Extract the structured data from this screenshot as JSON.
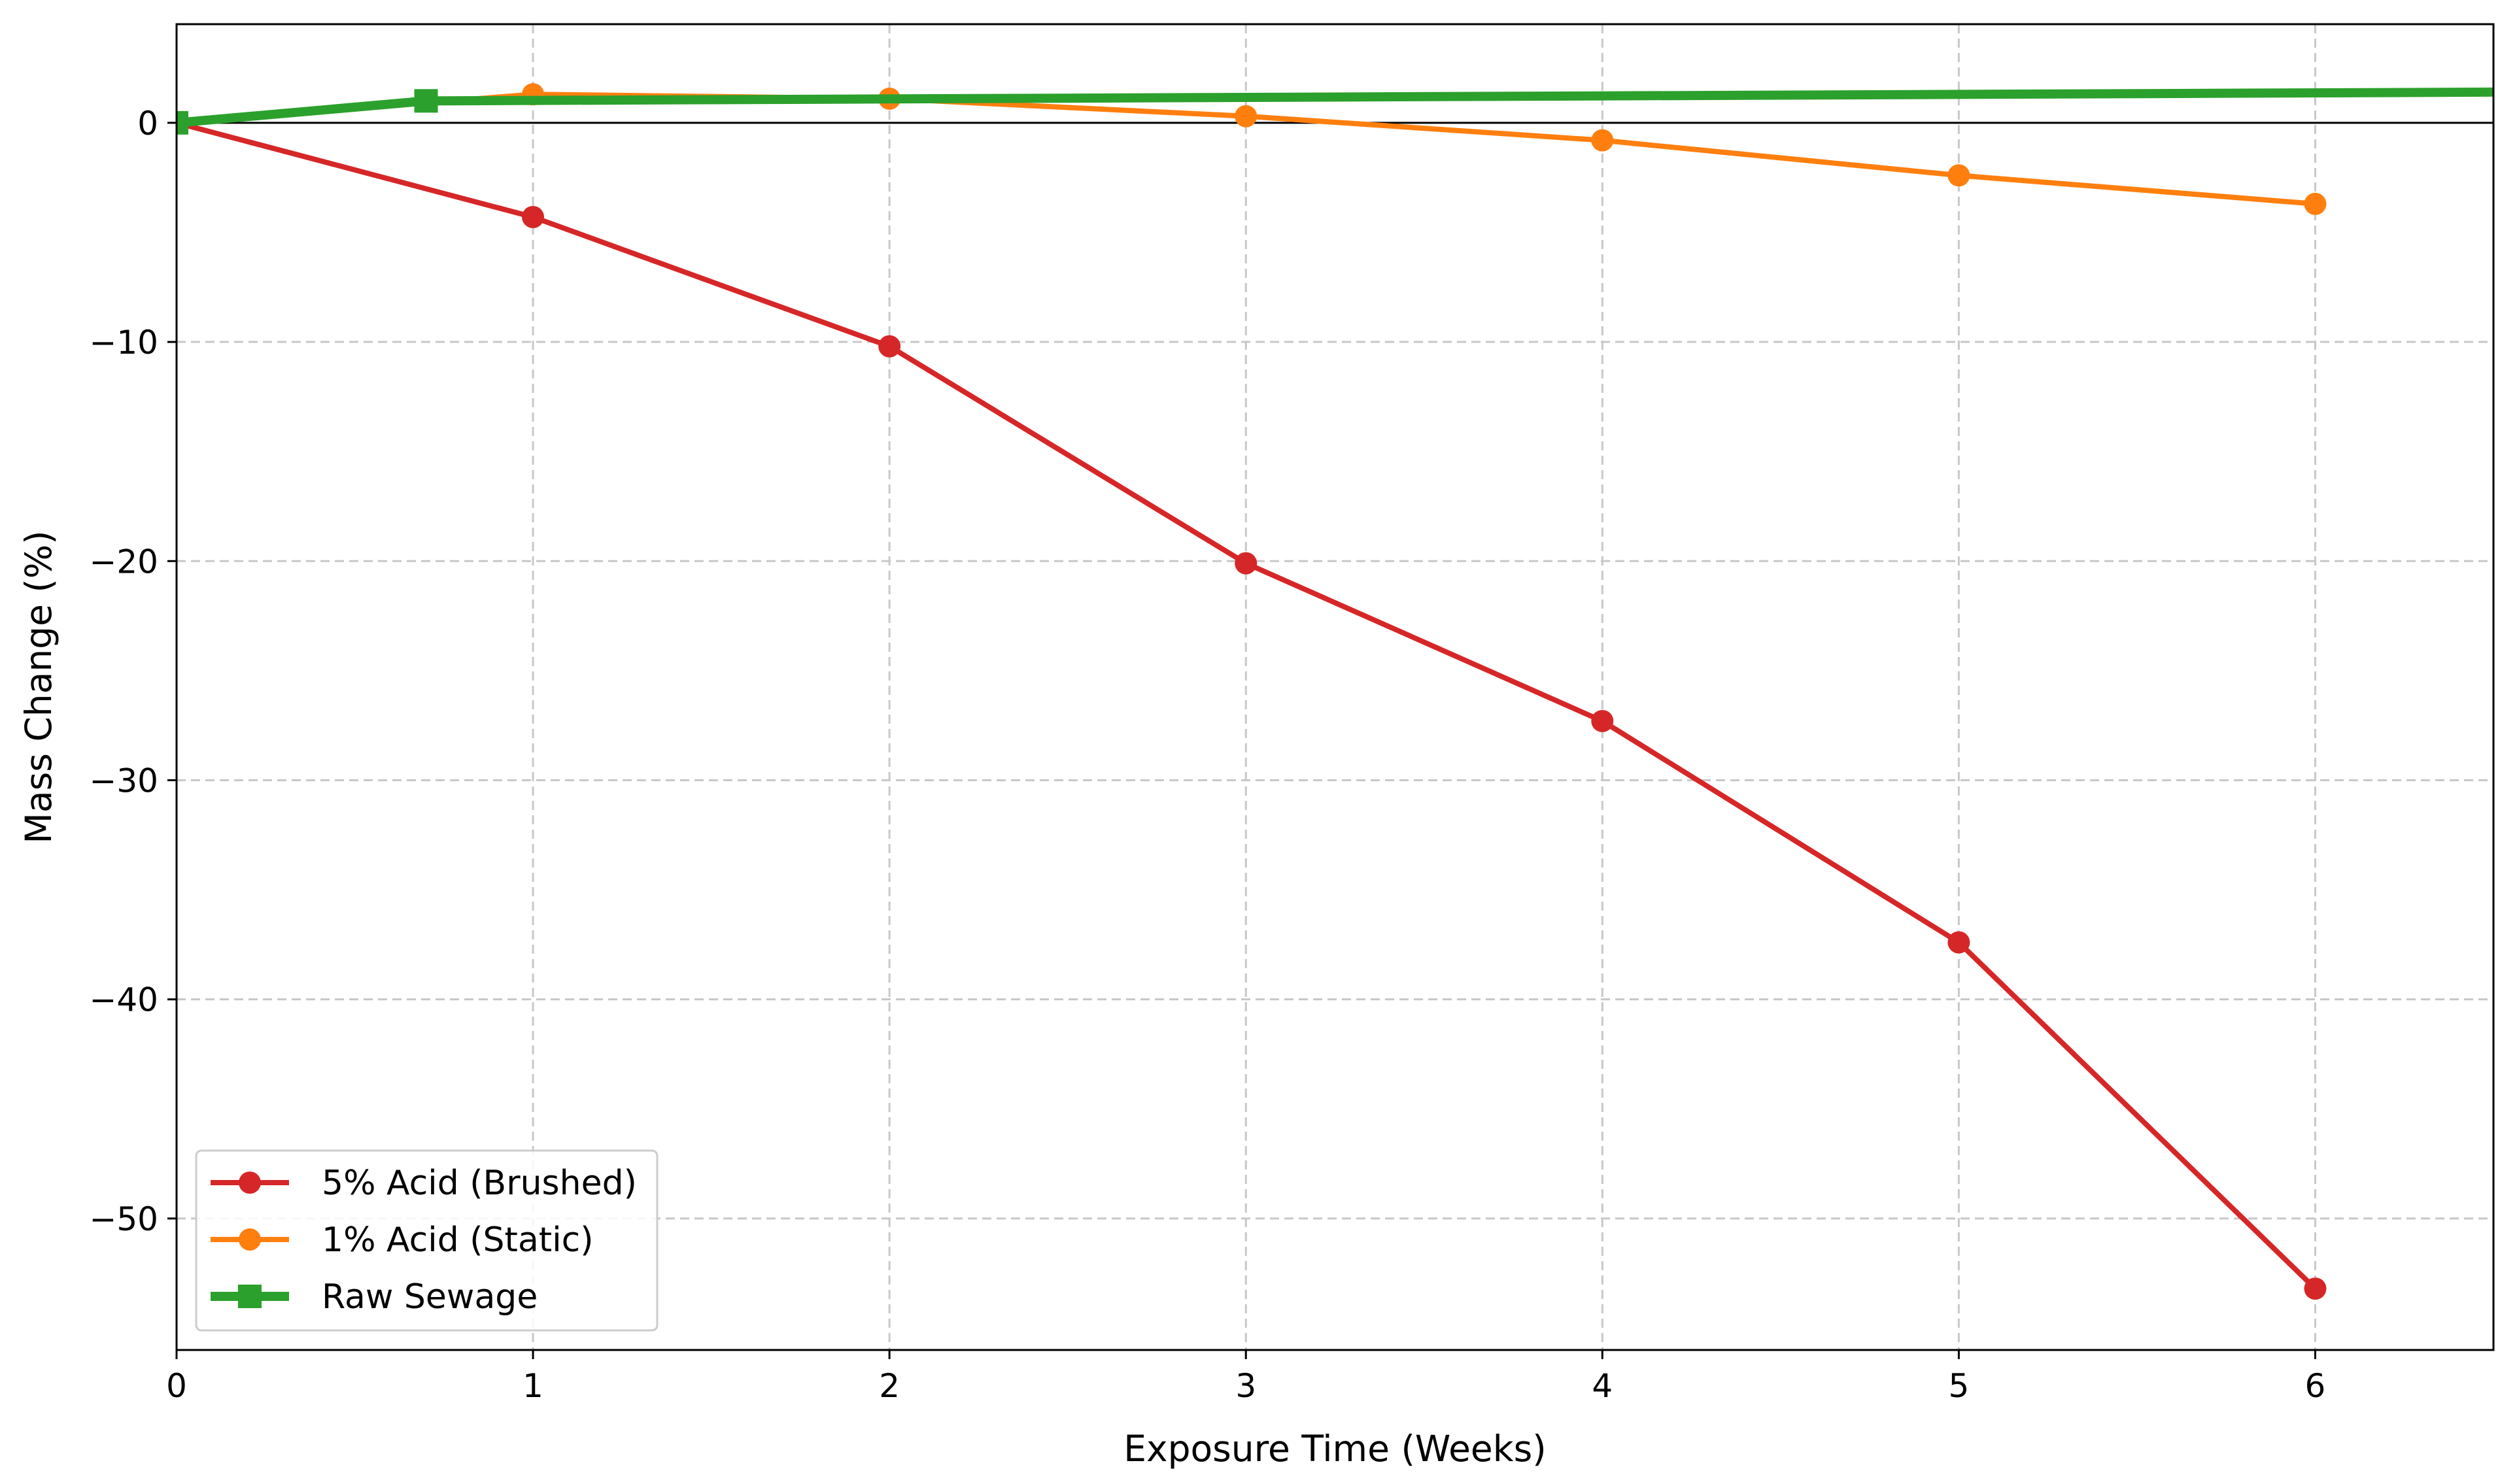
{
  "chart_data": {
    "type": "line",
    "title": "",
    "xlabel": "Exposure Time (Weeks)",
    "ylabel": "Mass Change (%)",
    "xlim": [
      0,
      6.5
    ],
    "ylim": [
      -56,
      4.5
    ],
    "xticks": [
      0,
      1,
      2,
      3,
      4,
      5,
      6
    ],
    "xtick_labels": [
      "0",
      "1",
      "2",
      "3",
      "4",
      "5",
      "6"
    ],
    "yticks": [
      0,
      -10,
      -20,
      -30,
      -40,
      -50
    ],
    "ytick_labels": [
      "0",
      "−10",
      "−20",
      "−30",
      "−40",
      "−50"
    ],
    "grid": true,
    "zero_line": true,
    "legend_position": "lower-left",
    "series": [
      {
        "name": "5% Acid (Brushed)",
        "color": "#d62728",
        "marker": "circle",
        "points": [
          {
            "x": 0,
            "y": 0
          },
          {
            "x": 1,
            "y": -4.3
          },
          {
            "x": 2,
            "y": -10.2
          },
          {
            "x": 3,
            "y": -20.1
          },
          {
            "x": 4,
            "y": -27.3
          },
          {
            "x": 5,
            "y": -37.4
          },
          {
            "x": 6,
            "y": -53.2
          }
        ]
      },
      {
        "name": "1% Acid (Static)",
        "color": "#ff7f0e",
        "marker": "circle",
        "points": [
          {
            "x": 0,
            "y": 0
          },
          {
            "x": 1,
            "y": 1.3
          },
          {
            "x": 2,
            "y": 1.1
          },
          {
            "x": 3,
            "y": 0.3
          },
          {
            "x": 4,
            "y": -0.8
          },
          {
            "x": 5,
            "y": -2.4
          },
          {
            "x": 6,
            "y": -3.7
          }
        ]
      },
      {
        "name": "Raw Sewage",
        "color": "#2ca02c",
        "marker": "square",
        "line_points": [
          {
            "x": 0,
            "y": 0
          },
          {
            "x": 0.7,
            "y": 1.0
          },
          {
            "x": 6.5,
            "y": 1.4
          }
        ],
        "marker_points": [
          {
            "x": 0,
            "y": 0
          },
          {
            "x": 0.7,
            "y": 1.0
          }
        ]
      }
    ]
  }
}
